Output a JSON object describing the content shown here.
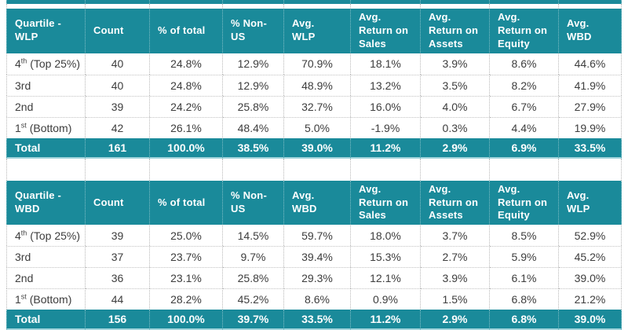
{
  "colors": {
    "teal_header": "#1a8a9a",
    "header_text": "#ffffff",
    "body_text": "#3d3d3d",
    "grid_dotted": "#b7b7b7",
    "bottom_edge": "#a3d5dc"
  },
  "tables": [
    {
      "title": "Quartile - WLP",
      "columns": [
        "Quartile -\nWLP",
        "Count",
        "% of total",
        "% Non-\nUS",
        "Avg.\nWLP",
        "Avg.\nReturn on\nSales",
        "Avg.\nReturn on\nAssets",
        "Avg.\nReturn on\nEquity",
        "Avg.\nWBD"
      ],
      "rows": [
        {
          "label": {
            "pre": "4",
            "sup": "th",
            "post": " (Top 25%)"
          },
          "values": [
            "40",
            "24.8%",
            "12.9%",
            "70.9%",
            "18.1%",
            "3.9%",
            "8.6%",
            "44.6%"
          ]
        },
        {
          "label": {
            "pre": "3rd",
            "sup": "",
            "post": ""
          },
          "values": [
            "40",
            "24.8%",
            "12.9%",
            "48.9%",
            "13.2%",
            "3.5%",
            "8.2%",
            "41.9%"
          ]
        },
        {
          "label": {
            "pre": "2nd",
            "sup": "",
            "post": ""
          },
          "values": [
            "39",
            "24.2%",
            "25.8%",
            "32.7%",
            "16.0%",
            "4.0%",
            "6.7%",
            "27.9%"
          ]
        },
        {
          "label": {
            "pre": "1",
            "sup": "st",
            "post": " (Bottom)"
          },
          "values": [
            "42",
            "26.1%",
            "48.4%",
            "5.0%",
            "-1.9%",
            "0.3%",
            "4.4%",
            "19.9%"
          ]
        }
      ],
      "total": {
        "label": "Total",
        "values": [
          "161",
          "100.0%",
          "38.5%",
          "39.0%",
          "11.2%",
          "2.9%",
          "6.9%",
          "33.5%"
        ]
      }
    },
    {
      "title": "Quartile - WBD",
      "columns": [
        "Quartile -\nWBD",
        "Count",
        "% of total",
        "% Non-\nUS",
        "Avg.\nWBD",
        "Avg.\nReturn on\nSales",
        "Avg.\nReturn on\nAssets",
        "Avg.\nReturn on\nEquity",
        "Avg.\nWLP"
      ],
      "rows": [
        {
          "label": {
            "pre": "4",
            "sup": "th",
            "post": " (Top 25%)"
          },
          "values": [
            "39",
            "25.0%",
            "14.5%",
            "59.7%",
            "18.0%",
            "3.7%",
            "8.5%",
            "52.9%"
          ]
        },
        {
          "label": {
            "pre": "3rd",
            "sup": "",
            "post": ""
          },
          "values": [
            "37",
            "23.7%",
            "9.7%",
            "39.4%",
            "15.3%",
            "2.7%",
            "5.9%",
            "45.2%"
          ]
        },
        {
          "label": {
            "pre": "2nd",
            "sup": "",
            "post": ""
          },
          "values": [
            "36",
            "23.1%",
            "25.8%",
            "29.3%",
            "12.1%",
            "3.9%",
            "6.1%",
            "39.0%"
          ]
        },
        {
          "label": {
            "pre": "1",
            "sup": "st",
            "post": " (Bottom)"
          },
          "values": [
            "44",
            "28.2%",
            "45.2%",
            "8.6%",
            "0.9%",
            "1.5%",
            "6.8%",
            "21.2%"
          ]
        }
      ],
      "total": {
        "label": "Total",
        "values": [
          "156",
          "100.0%",
          "39.7%",
          "33.5%",
          "11.2%",
          "2.9%",
          "6.8%",
          "39.0%"
        ]
      }
    }
  ]
}
